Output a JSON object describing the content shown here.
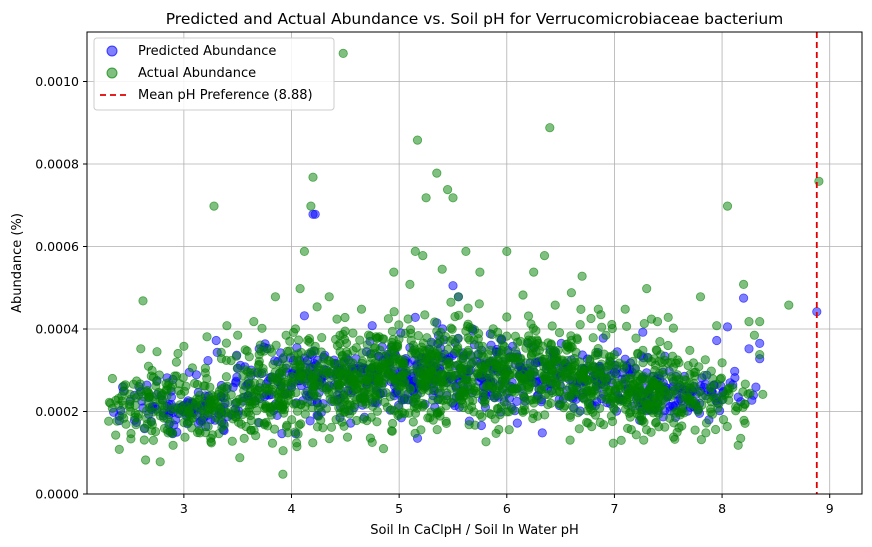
{
  "chart_data": {
    "type": "scatter",
    "title": "Predicted and Actual Abundance vs. Soil pH for Verrucomicrobiaceae bacterium",
    "xlabel": "Soil In CaClpH / Soil In Water pH",
    "ylabel": "Abundance (%)",
    "xlim": [
      2.1,
      9.3
    ],
    "ylim": [
      0,
      0.00112
    ],
    "xticks": [
      3,
      4,
      5,
      6,
      7,
      8,
      9
    ],
    "yticks": [
      0.0,
      0.0002,
      0.0004,
      0.0006,
      0.0008,
      0.001
    ],
    "ytick_labels": [
      "0.0000",
      "0.0002",
      "0.0004",
      "0.0006",
      "0.0008",
      "0.0010"
    ],
    "grid": true,
    "legend_position": "upper left",
    "series": [
      {
        "name": "Predicted Abundance",
        "color": "#0000ff",
        "alpha": 0.5,
        "points": [
          [
            2.4,
            0.000178
          ],
          [
            2.5,
            0.000225
          ],
          [
            2.6,
            0.000248
          ],
          [
            2.7,
            0.000205
          ],
          [
            2.75,
            0.000275
          ],
          [
            2.8,
            0.000228
          ],
          [
            2.9,
            0.000198
          ],
          [
            3.0,
            0.000215
          ],
          [
            3.05,
            0.000295
          ],
          [
            3.1,
            0.000208
          ],
          [
            3.2,
            0.000238
          ],
          [
            3.3,
            0.000372
          ],
          [
            3.35,
            0.000198
          ],
          [
            3.4,
            0.000255
          ],
          [
            3.5,
            0.000305
          ],
          [
            3.55,
            0.000225
          ],
          [
            3.6,
            0.000268
          ],
          [
            3.7,
            0.000352
          ],
          [
            3.75,
            0.000236
          ],
          [
            3.8,
            0.000282
          ],
          [
            3.85,
            0.000218
          ],
          [
            3.9,
            0.000342
          ],
          [
            3.95,
            0.000305
          ],
          [
            4.0,
            0.000258
          ],
          [
            4.05,
            0.000355
          ],
          [
            4.1,
            0.000292
          ],
          [
            4.12,
            0.000432
          ],
          [
            4.18,
            0.000242
          ],
          [
            4.2,
            0.000678
          ],
          [
            4.22,
            0.000678
          ],
          [
            4.25,
            0.000278
          ],
          [
            4.3,
            0.000332
          ],
          [
            4.35,
            0.000262
          ],
          [
            4.4,
            0.000315
          ],
          [
            4.45,
            0.000185
          ],
          [
            4.5,
            0.000285
          ],
          [
            4.55,
            0.000172
          ],
          [
            4.6,
            0.000305
          ],
          [
            4.7,
            0.000272
          ],
          [
            4.75,
            0.000408
          ],
          [
            4.8,
            0.000302
          ],
          [
            4.85,
            0.000245
          ],
          [
            4.9,
            0.000335
          ],
          [
            5.0,
            0.000282
          ],
          [
            5.05,
            0.000232
          ],
          [
            5.1,
            0.000355
          ],
          [
            5.15,
            0.000428
          ],
          [
            5.17,
            0.000135
          ],
          [
            5.2,
            0.000305
          ],
          [
            5.25,
            0.000262
          ],
          [
            5.3,
            0.000368
          ],
          [
            5.35,
            0.000415
          ],
          [
            5.4,
            0.000322
          ],
          [
            5.45,
            0.000285
          ],
          [
            5.5,
            0.000505
          ],
          [
            5.55,
            0.000478
          ],
          [
            5.6,
            0.000335
          ],
          [
            5.65,
            0.000298
          ],
          [
            5.7,
            0.000362
          ],
          [
            5.8,
            0.000318
          ],
          [
            5.85,
            0.000272
          ],
          [
            5.9,
            0.000345
          ],
          [
            6.0,
            0.000302
          ],
          [
            6.05,
            0.000255
          ],
          [
            6.1,
            0.000332
          ],
          [
            6.15,
            0.000295
          ],
          [
            6.2,
            0.000365
          ],
          [
            6.3,
            0.000322
          ],
          [
            6.33,
            0.000148
          ],
          [
            6.4,
            0.000312
          ],
          [
            6.45,
            0.000345
          ],
          [
            6.5,
            0.000285
          ],
          [
            6.6,
            0.000325
          ],
          [
            6.65,
            0.000258
          ],
          [
            6.7,
            0.000305
          ],
          [
            6.8,
            0.000285
          ],
          [
            6.9,
            0.000265
          ],
          [
            7.0,
            0.000295
          ],
          [
            7.05,
            0.000232
          ],
          [
            7.1,
            0.000278
          ],
          [
            7.2,
            0.000252
          ],
          [
            7.25,
            0.000335
          ],
          [
            7.3,
            0.000228
          ],
          [
            7.35,
            0.000268
          ],
          [
            7.4,
            0.000218
          ],
          [
            7.45,
            0.000295
          ],
          [
            7.5,
            0.000238
          ],
          [
            7.55,
            0.000212
          ],
          [
            7.6,
            0.000258
          ],
          [
            7.65,
            0.000285
          ],
          [
            7.7,
            0.000232
          ],
          [
            7.75,
            0.000215
          ],
          [
            7.8,
            0.000262
          ],
          [
            7.9,
            0.000248
          ],
          [
            7.95,
            0.000372
          ],
          [
            8.0,
            0.000228
          ],
          [
            8.05,
            0.000405
          ],
          [
            8.1,
            0.000265
          ],
          [
            8.15,
            0.000235
          ],
          [
            8.2,
            0.000475
          ],
          [
            8.25,
            0.000352
          ],
          [
            8.35,
            0.000365
          ],
          [
            8.35,
            0.000328
          ],
          [
            8.88,
            0.000442
          ]
        ]
      },
      {
        "name": "Actual Abundance",
        "color": "#008000",
        "alpha": 0.5,
        "points": [
          [
            2.4,
            0.000108
          ],
          [
            2.5,
            0.000242
          ],
          [
            2.55,
            0.000195
          ],
          [
            2.6,
            0.000352
          ],
          [
            2.62,
            0.000468
          ],
          [
            2.65,
            0.000248
          ],
          [
            2.7,
            0.000175
          ],
          [
            2.75,
            0.000345
          ],
          [
            2.78,
            7.8e-05
          ],
          [
            2.8,
            0.000228
          ],
          [
            2.85,
            0.000262
          ],
          [
            2.9,
            0.000118
          ],
          [
            2.95,
            0.000205
          ],
          [
            3.0,
            0.000358
          ],
          [
            3.05,
            0.000175
          ],
          [
            3.1,
            0.000268
          ],
          [
            3.15,
            0.000148
          ],
          [
            3.2,
            0.000305
          ],
          [
            3.25,
            0.000225
          ],
          [
            3.28,
            0.000698
          ],
          [
            3.3,
            0.000185
          ],
          [
            3.35,
            0.000328
          ],
          [
            3.4,
            0.000408
          ],
          [
            3.45,
            0.000128
          ],
          [
            3.5,
            0.000385
          ],
          [
            3.52,
            8.8e-05
          ],
          [
            3.55,
            0.000265
          ],
          [
            3.6,
            0.000198
          ],
          [
            3.65,
            0.000418
          ],
          [
            3.7,
            0.000338
          ],
          [
            3.75,
            0.000168
          ],
          [
            3.8,
            0.000352
          ],
          [
            3.85,
            0.000478
          ],
          [
            3.9,
            0.000228
          ],
          [
            3.92,
            4.8e-05
          ],
          [
            3.95,
            0.000385
          ],
          [
            4.0,
            0.000285
          ],
          [
            4.05,
            0.000115
          ],
          [
            4.08,
            0.000498
          ],
          [
            4.12,
            0.000588
          ],
          [
            4.18,
            0.000698
          ],
          [
            4.2,
            0.000768
          ],
          [
            4.22,
            0.000358
          ],
          [
            4.25,
            0.000208
          ],
          [
            4.3,
            0.000328
          ],
          [
            4.35,
            0.000478
          ],
          [
            4.4,
            0.000228
          ],
          [
            4.45,
            0.000385
          ],
          [
            4.48,
            0.001068
          ],
          [
            4.52,
            0.000138
          ],
          [
            4.55,
            0.000318
          ],
          [
            4.6,
            0.000255
          ],
          [
            4.65,
            0.000448
          ],
          [
            4.7,
            0.000178
          ],
          [
            4.75,
            0.000125
          ],
          [
            4.8,
            0.000378
          ],
          [
            4.85,
            0.000298
          ],
          [
            4.9,
            0.000425
          ],
          [
            4.95,
            0.000538
          ],
          [
            5.0,
            0.000248
          ],
          [
            5.05,
            0.000195
          ],
          [
            5.1,
            0.000508
          ],
          [
            5.15,
            0.000588
          ],
          [
            5.17,
            0.000858
          ],
          [
            5.22,
            0.000578
          ],
          [
            5.25,
            0.000718
          ],
          [
            5.3,
            0.000298
          ],
          [
            5.35,
            0.000778
          ],
          [
            5.4,
            0.000545
          ],
          [
            5.45,
            0.000738
          ],
          [
            5.5,
            0.000718
          ],
          [
            5.55,
            0.000478
          ],
          [
            5.58,
            0.000328
          ],
          [
            5.62,
            0.000588
          ],
          [
            5.65,
            0.000168
          ],
          [
            5.7,
            0.000398
          ],
          [
            5.75,
            0.000538
          ],
          [
            5.8,
            0.000228
          ],
          [
            5.85,
            0.000348
          ],
          [
            5.9,
            0.000308
          ],
          [
            6.0,
            0.000588
          ],
          [
            6.05,
            0.000248
          ],
          [
            6.1,
            0.000368
          ],
          [
            6.15,
            0.000198
          ],
          [
            6.25,
            0.000538
          ],
          [
            6.35,
            0.000578
          ],
          [
            6.4,
            0.000888
          ],
          [
            6.45,
            0.000458
          ],
          [
            6.5,
            0.000218
          ],
          [
            6.6,
            0.000488
          ],
          [
            6.65,
            0.000378
          ],
          [
            6.7,
            0.000528
          ],
          [
            6.75,
            0.000308
          ],
          [
            6.8,
            0.000198
          ],
          [
            6.85,
            0.000448
          ],
          [
            6.9,
            0.000168
          ],
          [
            7.0,
            0.000338
          ],
          [
            7.05,
            0.000258
          ],
          [
            7.1,
            0.000448
          ],
          [
            7.15,
            0.000198
          ],
          [
            7.2,
            0.000378
          ],
          [
            7.25,
            0.000178
          ],
          [
            7.3,
            0.000498
          ],
          [
            7.35,
            0.000285
          ],
          [
            7.4,
            0.000418
          ],
          [
            7.45,
            0.000228
          ],
          [
            7.5,
            0.000428
          ],
          [
            7.55,
            0.000138
          ],
          [
            7.6,
            0.000318
          ],
          [
            7.7,
            0.000348
          ],
          [
            7.75,
            0.000258
          ],
          [
            7.8,
            0.000478
          ],
          [
            7.85,
            0.000148
          ],
          [
            7.9,
            0.000298
          ],
          [
            7.95,
            0.000408
          ],
          [
            8.0,
            0.000318
          ],
          [
            8.05,
            0.000698
          ],
          [
            8.1,
            0.000258
          ],
          [
            8.15,
            0.000118
          ],
          [
            8.2,
            0.000508
          ],
          [
            8.25,
            0.000418
          ],
          [
            8.3,
            0.000385
          ],
          [
            8.35,
            0.000418
          ],
          [
            8.35,
            0.000338
          ],
          [
            8.62,
            0.000458
          ],
          [
            8.9,
            0.000758
          ]
        ]
      }
    ],
    "vline": {
      "label": "Mean pH Preference (8.88)",
      "x": 8.88,
      "color": "#e00000",
      "style": "dashed"
    },
    "density_clusters": [
      {
        "x_center": 3.0,
        "x_spread": 0.55,
        "y_center": 0.00021,
        "y_spread": 4e-05,
        "count": 220
      },
      {
        "x_center": 4.35,
        "x_spread": 0.65,
        "y_center": 0.00027,
        "y_spread": 5e-05,
        "count": 420
      },
      {
        "x_center": 5.45,
        "x_spread": 0.55,
        "y_center": 0.0003,
        "y_spread": 5e-05,
        "count": 360
      },
      {
        "x_center": 6.45,
        "x_spread": 0.55,
        "y_center": 0.00029,
        "y_spread": 5e-05,
        "count": 300
      },
      {
        "x_center": 7.45,
        "x_spread": 0.45,
        "y_center": 0.00024,
        "y_spread": 4e-05,
        "count": 260
      }
    ]
  }
}
